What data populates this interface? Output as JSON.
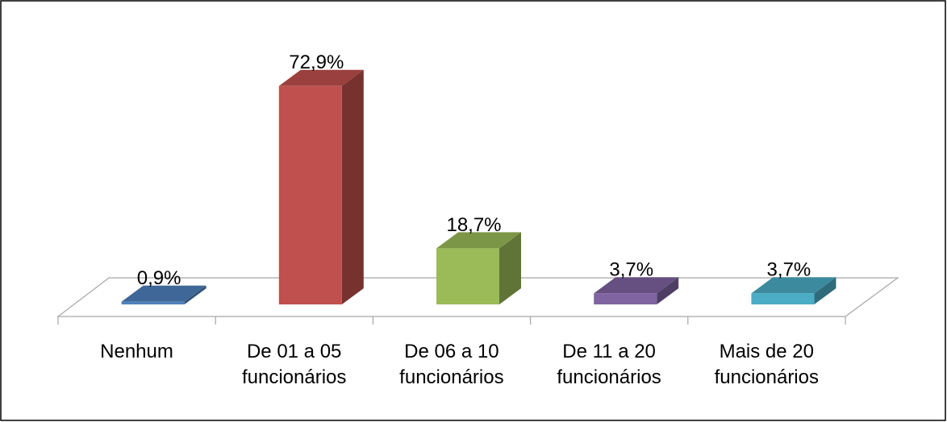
{
  "chart_data": {
    "type": "bar3d",
    "categories": [
      "Nenhum",
      "De 01 a 05\nfuncionários",
      "De 06 a 10\nfuncionários",
      "De 11 a 20\nfuncionários",
      "Mais de 20\nfuncionários"
    ],
    "values": [
      0.9,
      72.9,
      18.7,
      3.7,
      3.7
    ],
    "value_labels": [
      "0,9%",
      "72,9%",
      "18,7%",
      "3,7%",
      "3,7%"
    ],
    "colors": [
      "#4f81bd",
      "#c0504d",
      "#9bbb59",
      "#8064a2",
      "#4bacc6"
    ]
  }
}
